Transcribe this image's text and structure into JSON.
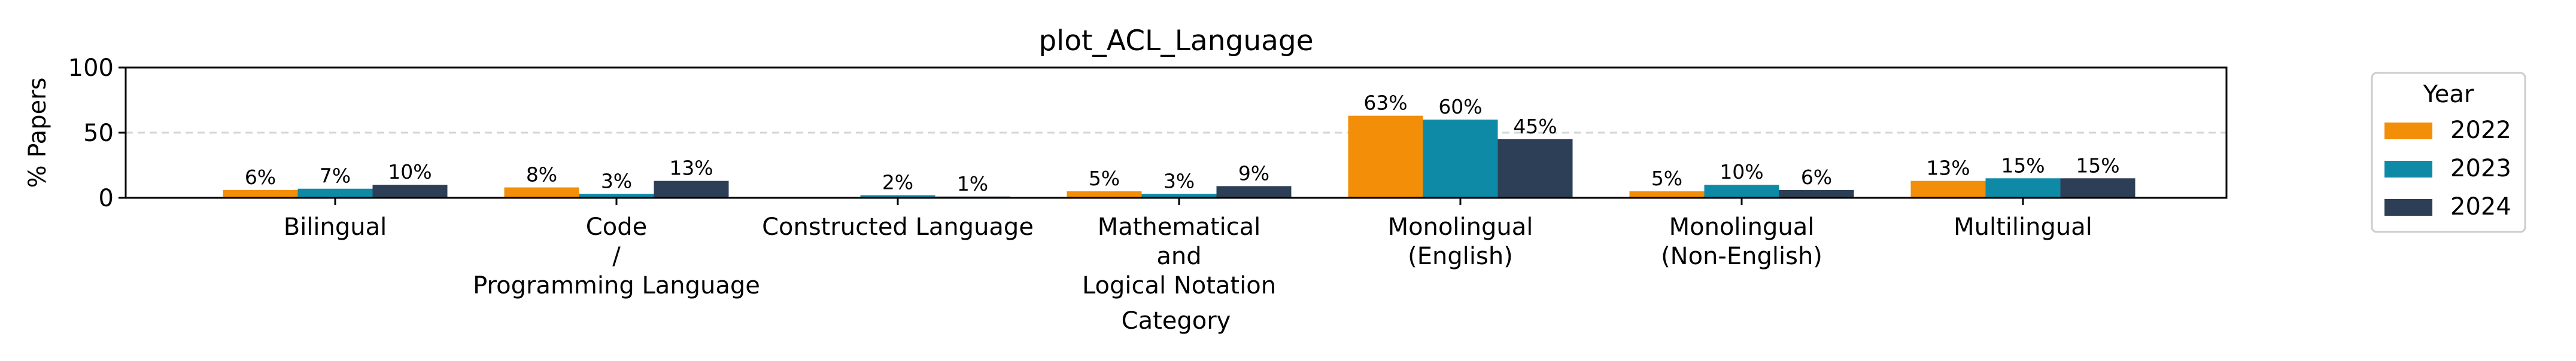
{
  "chart_data": {
    "type": "bar",
    "title": "plot_ACL_Language",
    "xlabel": "Category",
    "ylabel": "% Papers",
    "ylim": [
      0,
      100
    ],
    "yticks": [
      "0",
      "50",
      "100"
    ],
    "grid": "horizontal dashed",
    "legend_placement": "right, outside plot",
    "legend_title": "Year",
    "categories": [
      "Bilingual",
      "Code\n/\nProgramming Language",
      "Constructed Language",
      "Mathematical\nand\nLogical Notation",
      "Monolingual\n(English)",
      "Monolingual\n(Non-English)",
      "Multilingual"
    ],
    "series": [
      {
        "name": "2022",
        "color": "#f28e08",
        "values": [
          6,
          8,
          null,
          5,
          63,
          5,
          13
        ],
        "labels": [
          "6%",
          "8%",
          "",
          "5%",
          "63%",
          "5%",
          "13%"
        ]
      },
      {
        "name": "2023",
        "color": "#0e8aa6",
        "values": [
          7,
          3,
          2,
          3,
          60,
          10,
          15
        ],
        "labels": [
          "7%",
          "3%",
          "2%",
          "3%",
          "60%",
          "10%",
          "15%"
        ]
      },
      {
        "name": "2024",
        "color": "#2d3f56",
        "values": [
          10,
          13,
          1,
          9,
          45,
          6,
          15
        ],
        "labels": [
          "10%",
          "13%",
          "1%",
          "9%",
          "45%",
          "6%",
          "15%"
        ]
      }
    ]
  }
}
